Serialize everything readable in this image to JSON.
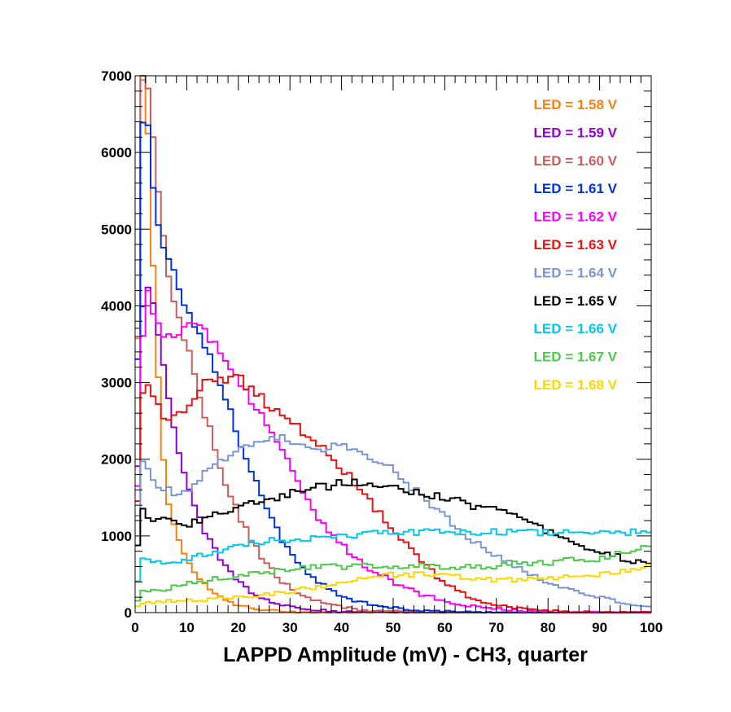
{
  "chart_data": {
    "type": "line",
    "title": "",
    "xlabel": "LAPPD Amplitude (mV) - CH3, quarter",
    "ylabel": "",
    "xlim": [
      0,
      100
    ],
    "ylim": [
      0,
      7000
    ],
    "xticks": [
      0,
      10,
      20,
      30,
      40,
      50,
      60,
      70,
      80,
      90,
      100
    ],
    "yticks": [
      0,
      1000,
      2000,
      3000,
      4000,
      5000,
      6000,
      7000
    ],
    "x_anchor": [
      0,
      1,
      2,
      3,
      4,
      6,
      8,
      10,
      12,
      14,
      16,
      18,
      20,
      22,
      24,
      26,
      28,
      30,
      32,
      35,
      38,
      40,
      43,
      46,
      50,
      55,
      60,
      65,
      70,
      75,
      80,
      85,
      90,
      95,
      100
    ],
    "legend_position": "top-right",
    "series": [
      {
        "name": "LED = 1.58 V",
        "color": "#ff7f0e",
        "values": [
          200,
          7000,
          7000,
          5500,
          3600,
          1500,
          1000,
          700,
          480,
          330,
          230,
          150,
          100,
          70,
          50,
          35,
          25,
          15,
          10,
          5,
          3,
          2,
          1,
          0,
          0,
          0,
          0,
          0,
          0,
          0,
          0,
          0,
          0,
          0,
          0
        ]
      },
      {
        "name": "LED = 1.59 V",
        "color": "#9400d3",
        "values": [
          150,
          3600,
          4300,
          4100,
          3900,
          3000,
          2200,
          1700,
          1300,
          1000,
          750,
          550,
          400,
          290,
          200,
          150,
          110,
          80,
          55,
          35,
          20,
          15,
          10,
          5,
          3,
          2,
          1,
          0,
          0,
          0,
          0,
          0,
          0,
          0,
          0
        ]
      },
      {
        "name": "LED = 1.60 V",
        "color": "#cd5c5c",
        "values": [
          350,
          7000,
          7000,
          6600,
          5800,
          4600,
          3900,
          3500,
          2900,
          2500,
          2000,
          1600,
          1300,
          1000,
          780,
          600,
          430,
          330,
          240,
          160,
          100,
          70,
          40,
          25,
          15,
          8,
          4,
          2,
          1,
          0,
          0,
          0,
          0,
          0,
          0
        ]
      },
      {
        "name": "LED = 1.61 V",
        "color": "#0033dd",
        "values": [
          500,
          6000,
          6700,
          6000,
          5200,
          4700,
          4300,
          3900,
          3700,
          3400,
          3100,
          2700,
          2300,
          1950,
          1600,
          1300,
          1000,
          800,
          600,
          430,
          300,
          220,
          150,
          100,
          60,
          30,
          15,
          8,
          4,
          2,
          1,
          0,
          0,
          0,
          0
        ]
      },
      {
        "name": "LED = 1.62 V",
        "color": "#ff00ff",
        "values": [
          300,
          3000,
          4200,
          4100,
          3800,
          3600,
          3500,
          3800,
          3750,
          3600,
          3450,
          3300,
          3000,
          2800,
          2600,
          2400,
          2200,
          1900,
          1650,
          1300,
          1000,
          880,
          700,
          550,
          400,
          250,
          150,
          90,
          50,
          25,
          12,
          6,
          3,
          1,
          0
        ]
      },
      {
        "name": "LED = 1.63 V",
        "color": "#ee1111",
        "values": [
          300,
          2600,
          3000,
          2900,
          2700,
          2550,
          2550,
          2700,
          2900,
          3000,
          3000,
          3050,
          3050,
          2950,
          2850,
          2700,
          2600,
          2500,
          2400,
          2250,
          2050,
          1900,
          1650,
          1400,
          1100,
          700,
          380,
          200,
          100,
          50,
          25,
          12,
          5,
          2,
          1
        ]
      },
      {
        "name": "LED = 1.64 V",
        "color": "#7b96d2",
        "values": [
          600,
          1950,
          1900,
          1800,
          1700,
          1600,
          1550,
          1600,
          1700,
          1850,
          1950,
          2050,
          2150,
          2200,
          2200,
          2250,
          2300,
          2250,
          2250,
          2150,
          2150,
          2200,
          2100,
          2000,
          1850,
          1550,
          1250,
          950,
          750,
          550,
          400,
          300,
          200,
          120,
          70
        ]
      },
      {
        "name": "LED = 1.65 V",
        "color": "#000000",
        "values": [
          400,
          1400,
          1250,
          1200,
          1200,
          1200,
          1150,
          1150,
          1200,
          1250,
          1300,
          1300,
          1350,
          1400,
          1450,
          1450,
          1500,
          1550,
          1600,
          1650,
          1650,
          1700,
          1700,
          1650,
          1650,
          1550,
          1500,
          1400,
          1350,
          1200,
          1050,
          900,
          800,
          700,
          600
        ]
      },
      {
        "name": "LED = 1.66 V",
        "color": "#00c8f0",
        "values": [
          200,
          650,
          700,
          650,
          650,
          650,
          650,
          700,
          750,
          750,
          800,
          850,
          900,
          900,
          900,
          950,
          950,
          950,
          950,
          1000,
          1000,
          1000,
          1000,
          1050,
          1050,
          1050,
          1050,
          1050,
          1050,
          1050,
          1050,
          1050,
          1050,
          1050,
          1050
        ]
      },
      {
        "name": "LED = 1.67 V",
        "color": "#4ec94e",
        "values": [
          100,
          250,
          300,
          300,
          300,
          300,
          350,
          400,
          400,
          420,
          450,
          450,
          500,
          500,
          500,
          520,
          550,
          550,
          580,
          600,
          600,
          600,
          600,
          620,
          600,
          620,
          600,
          600,
          600,
          650,
          650,
          700,
          700,
          800,
          850
        ]
      },
      {
        "name": "LED = 1.68 V",
        "color": "#ffd700",
        "values": [
          50,
          100,
          120,
          130,
          130,
          150,
          150,
          150,
          170,
          170,
          180,
          200,
          200,
          220,
          220,
          250,
          250,
          270,
          300,
          330,
          370,
          400,
          450,
          480,
          500,
          500,
          480,
          450,
          430,
          420,
          450,
          480,
          500,
          550,
          600
        ]
      }
    ]
  }
}
